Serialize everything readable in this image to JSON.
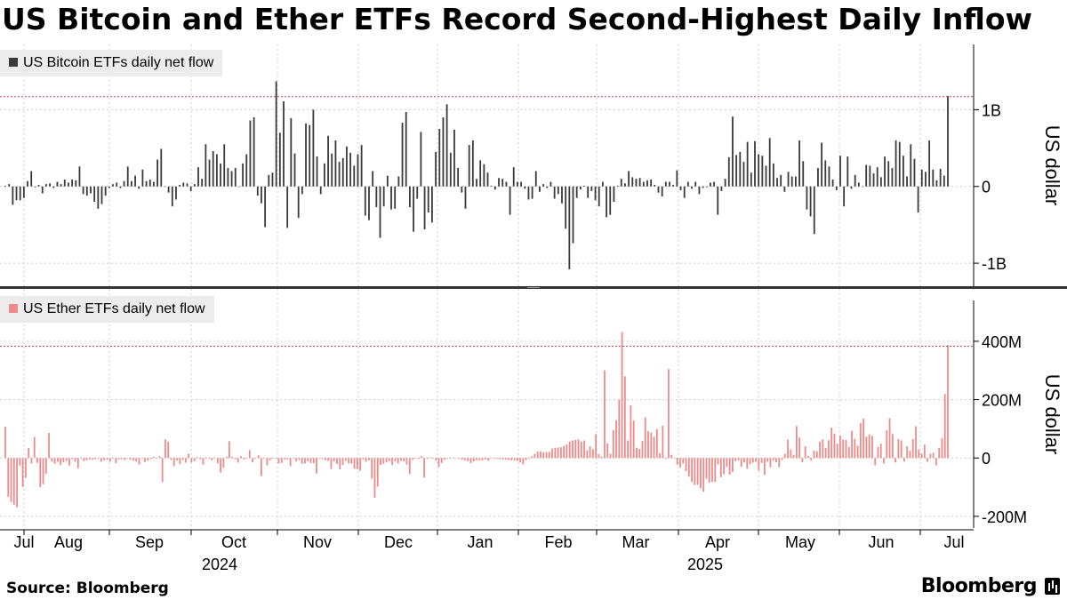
{
  "title": "US Bitcoin and Ether ETFs Record Second-Highest Daily Inflow",
  "source": "Source: Bloomberg",
  "brand": "Bloomberg",
  "colors": {
    "bitcoin": "#3a3a3a",
    "ether": "#f08a8a",
    "reference_line": "#c24a4a",
    "grid": "#cccccc"
  },
  "chart_data": [
    {
      "type": "bar",
      "legend": "US Bitcoin ETFs daily net flow",
      "ylabel": "US dollar",
      "ylim": [
        -1.3,
        1.85
      ],
      "unit": "B",
      "y_ticks": [
        {
          "value": 1,
          "label": "1B"
        },
        {
          "value": 0,
          "label": "0"
        },
        {
          "value": -1,
          "label": "-1B"
        }
      ],
      "reference_line": 1.17,
      "values": [
        0.01,
        0.03,
        -0.24,
        -0.18,
        -0.18,
        -0.15,
        0.07,
        0.2,
        -0.01,
        0.02,
        -0.09,
        0.03,
        0.04,
        -0.02,
        0.06,
        0.03,
        0.09,
        0.05,
        0.09,
        0.08,
        0.26,
        -0.1,
        -0.12,
        -0.09,
        -0.2,
        -0.29,
        -0.23,
        -0.12,
        -0.02,
        0.03,
        0.05,
        -0.02,
        0.07,
        0.26,
        0.07,
        0.14,
        -0.03,
        0.22,
        0.07,
        0.09,
        0.06,
        0.35,
        0.49,
        0.0,
        -0.08,
        -0.26,
        -0.17,
        0.02,
        0.05,
        0.04,
        -0.06,
        0.03,
        0.25,
        0.1,
        0.55,
        0.35,
        0.46,
        0.42,
        0.3,
        0.55,
        0.24,
        0.2,
        0.24,
        0.0,
        0.3,
        0.42,
        0.86,
        0.9,
        -0.12,
        -0.22,
        -0.53,
        0.15,
        0.18,
        1.37,
        0.7,
        1.11,
        -0.54,
        0.89,
        0.43,
        -0.41,
        -0.1,
        0.82,
        0.8,
        1.0,
        0.39,
        -0.1,
        0.3,
        0.66,
        0.43,
        0.6,
        0.32,
        0.37,
        0.52,
        0.44,
        0.27,
        0.42,
        0.54,
        -0.38,
        -0.44,
        0.2,
        -0.27,
        -0.67,
        -0.26,
        0.14,
        -0.3,
        -0.29,
        0.13,
        0.83,
        0.97,
        -0.27,
        -0.59,
        -0.16,
        0.71,
        -0.56,
        -0.34,
        -0.47,
        0.45,
        0.75,
        0.9,
        1.07,
        0.44,
        0.74,
        0.24,
        -0.08,
        -0.29,
        0.54,
        0.6,
        0.1,
        0.34,
        0.29,
        0.18,
        0.01,
        -0.04,
        0.11,
        0.1,
        0.06,
        -0.37,
        0.25,
        0.06,
        0.06,
        -0.03,
        -0.17,
        -0.16,
        0.2,
        -0.07,
        0.03,
        -0.02,
        0.06,
        -0.16,
        -0.1,
        -0.22,
        -0.55,
        -1.08,
        -0.74,
        -0.15,
        -0.04,
        0.01,
        -0.15,
        -0.06,
        -0.18,
        -0.26,
        0.06,
        -0.4,
        -0.37,
        -0.2,
        0.01,
        0.1,
        0.04,
        0.2,
        0.12,
        0.1,
        0.11,
        0.06,
        0.08,
        0.09,
        0.02,
        -0.08,
        -0.13,
        0.06,
        0.06,
        0.02,
        0.21,
        -0.05,
        -0.15,
        0.06,
        -0.03,
        0.06,
        -0.1,
        -0.02,
        -0.01,
        0.05,
        0.06,
        -0.37,
        -0.06,
        0.1,
        0.38,
        0.91,
        0.41,
        0.45,
        0.32,
        0.58,
        0.18,
        0.59,
        0.42,
        0.4,
        0.27,
        0.63,
        0.3,
        0.11,
        0.15,
        -0.07,
        0.19,
        0.13,
        0.13,
        0.6,
        0.33,
        -0.3,
        -0.39,
        -0.62,
        0.24,
        0.57,
        0.34,
        0.26,
        0.09,
        -0.05,
        0.4,
        -0.26,
        0.39,
        -0.03,
        0.15,
        0.05,
        0.0,
        0.28,
        0.27,
        0.17,
        0.25,
        0.12,
        0.39,
        0.33,
        0.24,
        0.6,
        0.58,
        0.4,
        0.13,
        0.55,
        0.36,
        -0.34,
        0.22,
        0.19,
        0.6,
        0.22,
        0.08,
        0.23,
        0.14,
        1.18
      ]
    },
    {
      "type": "bar",
      "legend": "US Ether ETFs daily net flow",
      "ylabel": "US dollar",
      "ylim": [
        -240,
        540
      ],
      "unit": "M",
      "y_ticks": [
        {
          "value": 400,
          "label": "400M"
        },
        {
          "value": 200,
          "label": "200M"
        },
        {
          "value": 0,
          "label": "0"
        },
        {
          "value": -200,
          "label": "-200M"
        }
      ],
      "reference_line": 383,
      "values": [
        107,
        -133,
        -151,
        -160,
        -169,
        -27,
        -99,
        -68,
        34,
        -19,
        72,
        -17,
        -100,
        -90,
        -54,
        86,
        -13,
        -20,
        -13,
        -24,
        -15,
        -10,
        -26,
        -4,
        -13,
        -35,
        -1,
        -11,
        -8,
        -5,
        -5,
        -4,
        -1,
        -13,
        -8,
        -6,
        -13,
        -2,
        -18,
        -5,
        -4,
        -7,
        -2,
        -6,
        -9,
        -12,
        -23,
        -1,
        -14,
        -9,
        -4,
        4,
        -2,
        6,
        -82,
        64,
        55,
        -7,
        -28,
        -9,
        -21,
        -7,
        -16,
        15,
        -15,
        -11,
        3,
        -4,
        -23,
        -2,
        -2,
        -8,
        2,
        -19,
        -50,
        -34,
        4,
        57,
        4,
        -4,
        -16,
        6,
        -5,
        -1,
        27,
        -15,
        -2,
        9,
        -62,
        0,
        -25,
        -8,
        -2,
        0,
        -19,
        -17,
        -5,
        -5,
        -28,
        -1,
        -12,
        -7,
        -20,
        -19,
        -11,
        -18,
        -18,
        -53,
        -2,
        -4,
        -8,
        -10,
        -38,
        -12,
        -21,
        -39,
        -24,
        -10,
        -18,
        -19,
        -37,
        -38,
        -44,
        -6,
        -13,
        -8,
        -71,
        -136,
        -98,
        -24,
        -20,
        -15,
        -11,
        -24,
        -12,
        -19,
        -10,
        -12,
        -23,
        -55,
        -6,
        -1,
        -3,
        6,
        -67,
        -3,
        3,
        -1,
        -8,
        -30,
        -17,
        -6,
        -3,
        2,
        -2,
        1,
        -3,
        -6,
        -8,
        -11,
        -18,
        -12,
        -8,
        -8,
        -9,
        -5,
        -9,
        -2,
        -2,
        -3,
        -4,
        -5,
        -6,
        -7,
        -8,
        -9,
        -10,
        -15,
        -22,
        -7,
        -3,
        6,
        14,
        22,
        23,
        20,
        20,
        21,
        33,
        35,
        36,
        37,
        42,
        47,
        56,
        60,
        62,
        64,
        56,
        60,
        26,
        40,
        30,
        82,
        14,
        4,
        300,
        50,
        14,
        95,
        129,
        200,
        432,
        280,
        60,
        180,
        128,
        35,
        31,
        58,
        139,
        92,
        87,
        73,
        99,
        16,
        111,
        -3,
        305,
        11,
        -1,
        -23,
        -32,
        -19,
        -45,
        -64,
        -82,
        -93,
        -92,
        -104,
        -116,
        -71,
        -85,
        -82,
        -82,
        -22,
        -66,
        -55,
        -31,
        -57,
        -48,
        -11,
        -8,
        -30,
        -15,
        -37,
        -22,
        -16,
        -13,
        -43,
        -17,
        -58,
        -13,
        -32,
        -9,
        -15,
        -32,
        -7,
        14,
        63,
        29,
        10,
        110,
        70,
        -14,
        40,
        7,
        -8,
        25,
        23,
        56,
        64,
        34,
        61,
        104,
        83,
        49,
        77,
        63,
        62,
        38,
        93,
        66,
        42,
        119,
        135,
        73,
        81,
        76,
        -25,
        38,
        49,
        -19,
        95,
        136,
        82,
        -15,
        65,
        60,
        -12,
        40,
        25,
        65,
        109,
        29,
        15,
        46,
        -13,
        14,
        18,
        -25,
        34,
        68,
        219,
        387
      ]
    }
  ],
  "x_axis": {
    "months": [
      "Jul",
      "Aug",
      "Sep",
      "Oct",
      "Nov",
      "Dec",
      "Jan",
      "Feb",
      "Mar",
      "Apr",
      "May",
      "Jun",
      "Jul"
    ],
    "years": [
      "2024",
      "2025"
    ]
  }
}
